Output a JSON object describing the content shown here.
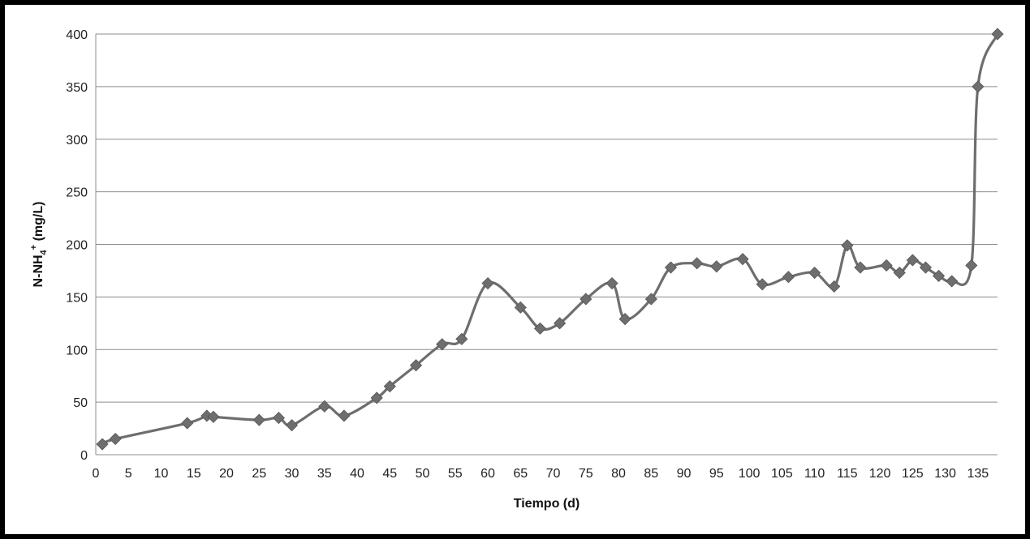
{
  "chart_data": {
    "type": "line",
    "title": "",
    "xlabel": "Tiempo (d)",
    "ylabel_parts": {
      "base": "N-NH",
      "sub": "4",
      "sup": "+",
      "unit": " (mg/L)"
    },
    "xlim": [
      0,
      138
    ],
    "ylim": [
      0,
      400
    ],
    "x_ticks": [
      0,
      5,
      10,
      15,
      20,
      25,
      30,
      35,
      40,
      45,
      50,
      55,
      60,
      65,
      70,
      75,
      80,
      85,
      90,
      95,
      100,
      105,
      110,
      115,
      120,
      125,
      130,
      135
    ],
    "y_ticks": [
      0,
      50,
      100,
      150,
      200,
      250,
      300,
      350,
      400
    ],
    "grid": "horizontal",
    "series_color": "#6e6e6e",
    "series": [
      {
        "x": [
          1,
          3,
          14,
          17,
          18,
          25,
          28,
          30,
          35,
          38,
          43,
          45,
          49,
          53,
          56,
          60,
          65,
          68,
          71,
          75,
          79,
          81,
          85,
          88,
          92,
          95,
          99,
          102,
          106,
          110,
          113,
          115,
          117,
          121,
          123,
          125,
          127,
          129,
          131,
          134,
          135,
          138
        ],
        "y": [
          10,
          15,
          30,
          37,
          36,
          33,
          35,
          28,
          46,
          37,
          54,
          65,
          85,
          105,
          110,
          163,
          140,
          120,
          125,
          148,
          163,
          129,
          148,
          178,
          182,
          179,
          186,
          162,
          169,
          173,
          160,
          199,
          178,
          180,
          173,
          185,
          178,
          170,
          165,
          180,
          350,
          400
        ]
      }
    ]
  }
}
